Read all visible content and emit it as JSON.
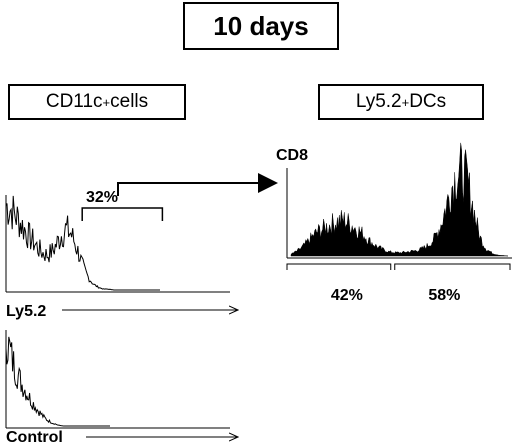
{
  "header": {
    "title": "10 days"
  },
  "panels": {
    "left": {
      "name": "CD11c",
      "sup": "+",
      "suffix": " cells"
    },
    "right": {
      "name": "Ly5.2",
      "sup": "+",
      "suffix": " DCs"
    }
  },
  "chart_data": [
    {
      "type": "area",
      "panel": "ly5.2-histogram",
      "xlabel": "Ly5.2",
      "gate_label": "32%",
      "gate_range": [
        0.3,
        0.6
      ],
      "x": [
        0,
        0.03,
        0.06,
        0.09,
        0.12,
        0.15,
        0.18,
        0.21,
        0.24,
        0.27,
        0.3,
        0.33,
        0.36,
        0.39,
        0.42,
        0.45,
        0.48,
        0.51,
        0.54,
        0.57,
        0.6,
        0.63,
        0.66,
        0.7,
        0.75,
        0.8,
        0.9,
        1.0
      ],
      "y": [
        0.92,
        0.88,
        0.82,
        0.74,
        0.66,
        0.58,
        0.52,
        0.45,
        0.4,
        0.38,
        0.42,
        0.5,
        0.6,
        0.66,
        0.62,
        0.5,
        0.36,
        0.22,
        0.12,
        0.06,
        0.03,
        0.01,
        0.01,
        0,
        0,
        0,
        0,
        0
      ],
      "ylim": [
        0,
        1
      ]
    },
    {
      "type": "area",
      "panel": "control-histogram",
      "xlabel": "Control",
      "x": [
        0,
        0.03,
        0.06,
        0.09,
        0.12,
        0.15,
        0.18,
        0.21,
        0.24,
        0.27,
        0.3,
        0.33,
        0.36,
        0.39,
        0.42,
        0.45,
        0.48,
        0.5,
        0.55,
        0.6,
        0.7,
        0.8,
        0.9,
        1.0
      ],
      "y": [
        0.98,
        0.85,
        0.72,
        0.62,
        0.54,
        0.46,
        0.4,
        0.34,
        0.28,
        0.23,
        0.18,
        0.14,
        0.1,
        0.07,
        0.05,
        0.03,
        0.02,
        0.01,
        0,
        0,
        0,
        0,
        0,
        0
      ],
      "ylim": [
        0,
        1
      ]
    },
    {
      "type": "area",
      "panel": "cd8-histogram",
      "ylabel": "CD8",
      "gates": [
        {
          "label": "42%",
          "range": [
            0,
            0.47
          ]
        },
        {
          "label": "58%",
          "range": [
            0.47,
            1.0
          ]
        }
      ],
      "x": [
        0,
        0.03,
        0.06,
        0.09,
        0.12,
        0.15,
        0.18,
        0.21,
        0.24,
        0.27,
        0.3,
        0.33,
        0.36,
        0.39,
        0.42,
        0.45,
        0.48,
        0.51,
        0.54,
        0.57,
        0.6,
        0.63,
        0.66,
        0.69,
        0.72,
        0.75,
        0.78,
        0.81,
        0.84,
        0.87,
        0.9,
        0.93,
        0.96,
        1.0
      ],
      "y": [
        0.02,
        0.06,
        0.12,
        0.2,
        0.28,
        0.32,
        0.36,
        0.4,
        0.42,
        0.38,
        0.32,
        0.26,
        0.18,
        0.12,
        0.08,
        0.05,
        0.04,
        0.04,
        0.05,
        0.06,
        0.08,
        0.12,
        0.2,
        0.36,
        0.62,
        0.88,
        1.0,
        0.9,
        0.55,
        0.22,
        0.08,
        0.03,
        0.01,
        0
      ],
      "ylim": [
        0,
        1
      ]
    }
  ]
}
